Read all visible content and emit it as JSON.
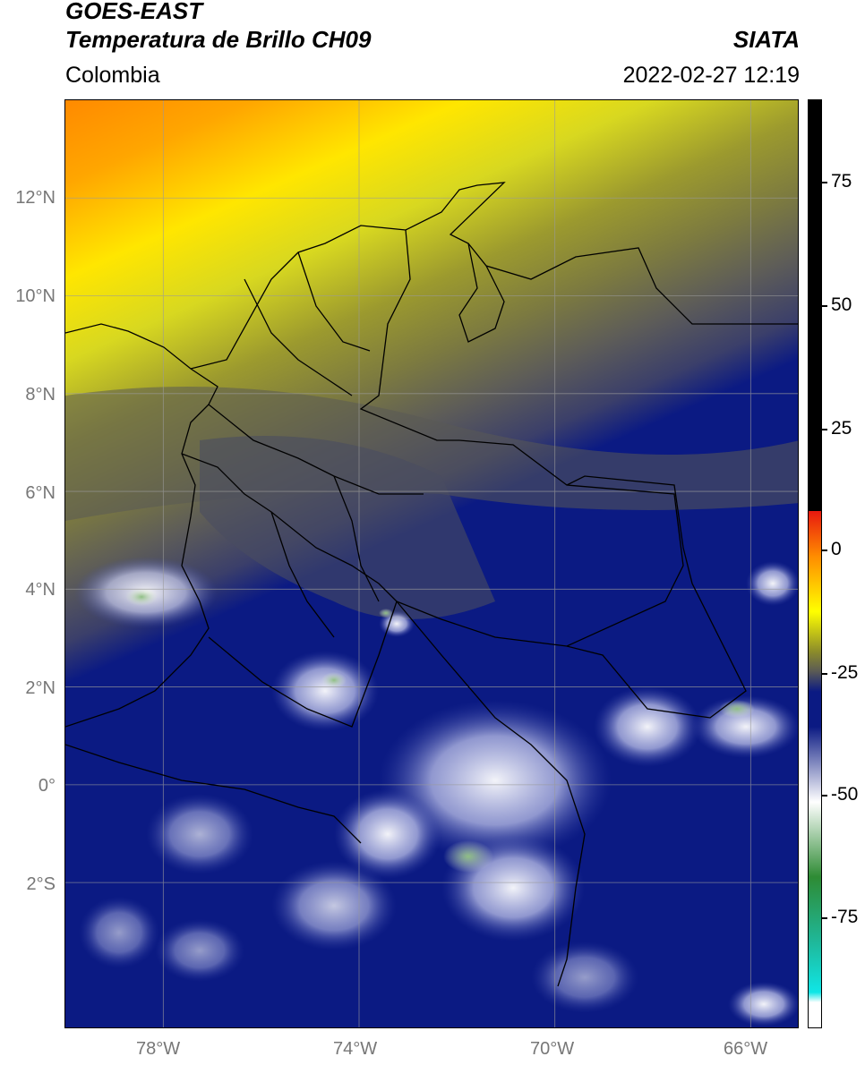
{
  "header": {
    "satellite": "GOES-EAST",
    "product": "Temperatura de Brillo CH09",
    "source": "SIATA",
    "region": "Colombia",
    "timestamp": "2022-02-27 12:19"
  },
  "map": {
    "lat_labels": [
      "12°N",
      "10°N",
      "8°N",
      "6°N",
      "4°N",
      "2°N",
      "0°",
      "2°S"
    ],
    "lon_labels": [
      "78°W",
      "74°W",
      "70°W",
      "66°W"
    ],
    "lat_range": [
      -5,
      14
    ],
    "lon_range": [
      -80,
      -65
    ]
  },
  "colorbar": {
    "labels": [
      "75",
      "50",
      "25",
      "0",
      "-25",
      "-50",
      "-75"
    ],
    "unit_range": [
      -95,
      90
    ],
    "colors": {
      "black": "#000000",
      "red": "#e8190f",
      "orange": "#ff8c00",
      "yellow": "#ffff00",
      "olive": "#8c8c2a",
      "gray": "#5a5a55",
      "navy": "#0b1a83",
      "white": "#ffffff",
      "green": "#2e8b34",
      "teal": "#1fb89a",
      "cyan": "#10e6e6"
    }
  }
}
